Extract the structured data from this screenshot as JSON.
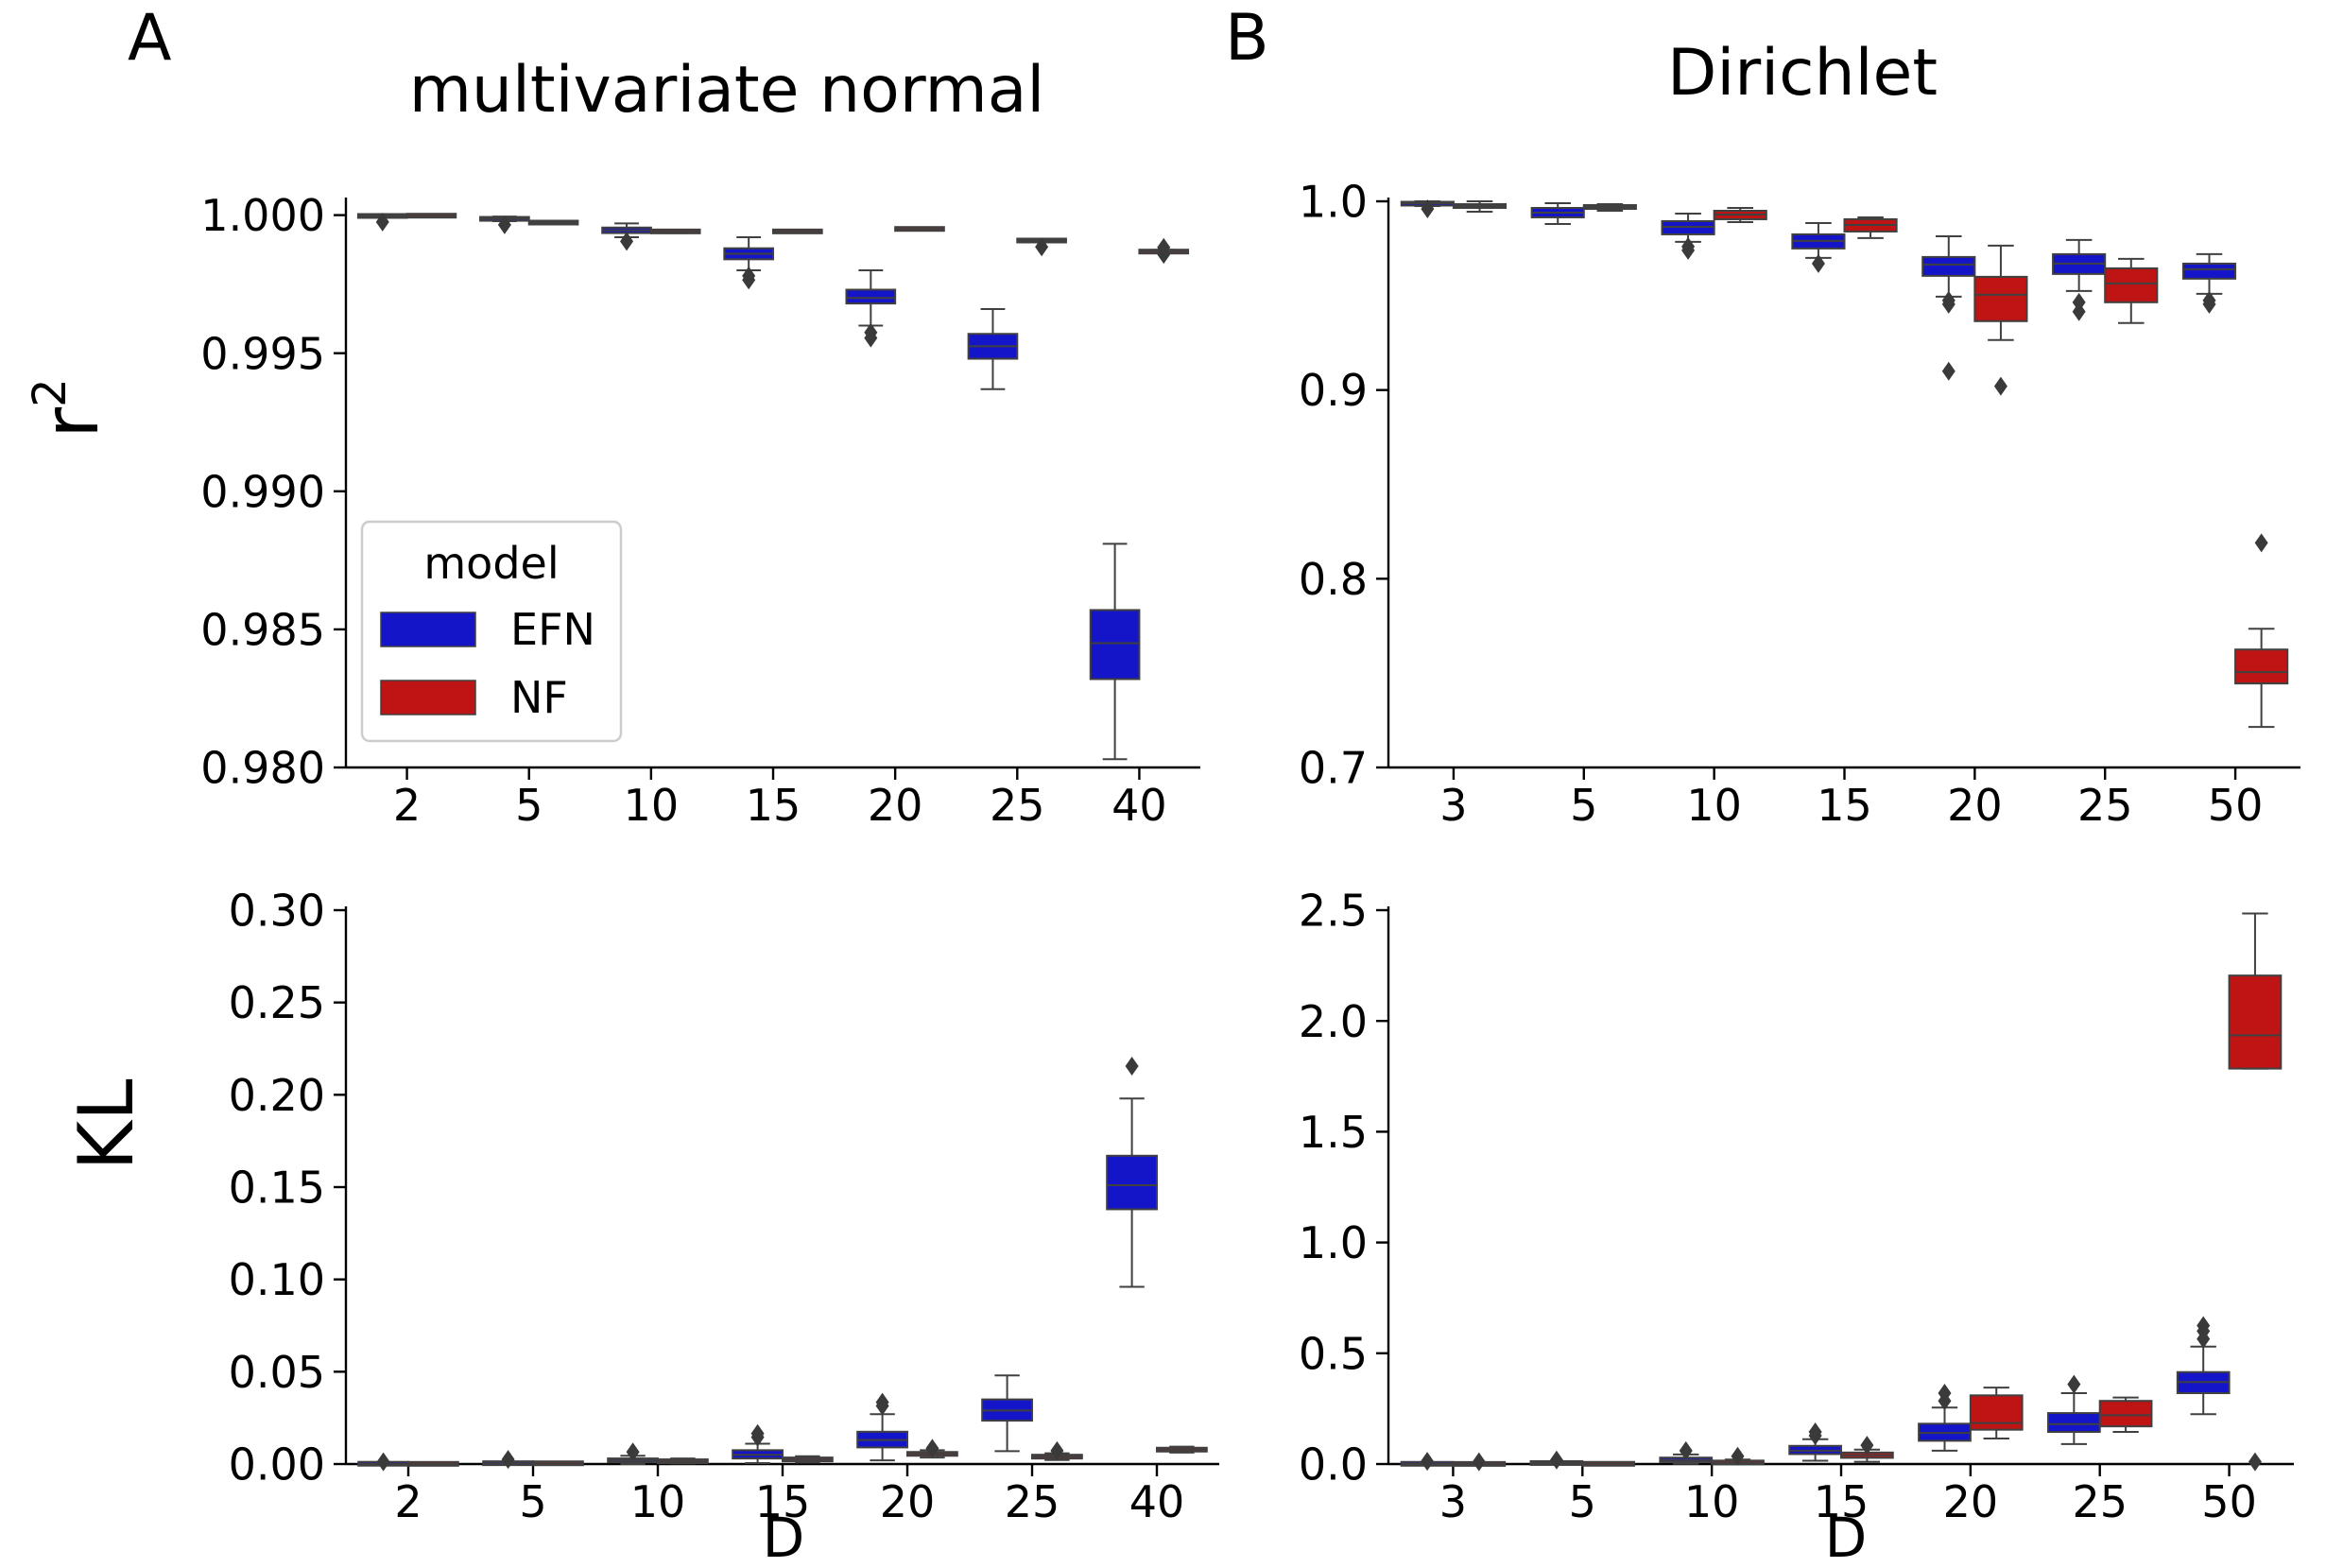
{
  "figure": {
    "panel_labels": [
      "A",
      "B"
    ],
    "column_titles": [
      "multivariate normal",
      "Dirichlet"
    ],
    "row_labels": [
      "r",
      "KL"
    ],
    "row_label_superscript": "2",
    "xlabel": "D"
  },
  "legend": {
    "title": "model",
    "entries": [
      {
        "label": "EFN",
        "color": "#1414c8"
      },
      {
        "label": "NF",
        "color": "#bf1414"
      }
    ]
  },
  "colors": {
    "EFN": "#1414c8",
    "NF": "#bf1414",
    "whisker": "#404040"
  },
  "chart_data": [
    {
      "id": "A-r2",
      "type": "box",
      "panel": "A",
      "title": "multivariate normal",
      "ylabel": "r2",
      "xlabel": "",
      "categories": [
        "2",
        "5",
        "10",
        "15",
        "20",
        "25",
        "40"
      ],
      "ylim": [
        0.98,
        1.0005
      ],
      "yticks": [
        0.98,
        0.985,
        0.99,
        0.995,
        1.0
      ],
      "ytick_labels": [
        "0.980",
        "0.985",
        "0.990",
        "0.995",
        "1.000"
      ],
      "grid": false,
      "legend": "lower-left",
      "series": [
        {
          "name": "EFN",
          "boxes": [
            {
              "q1": 0.99995,
              "median": 0.99997,
              "q3": 0.99999,
              "whislo": 0.99992,
              "whishi": 1.0,
              "fliers": [
                0.99975
              ]
            },
            {
              "q1": 0.99983,
              "median": 0.99987,
              "q3": 0.9999,
              "whislo": 0.99978,
              "whishi": 0.99995,
              "fliers": [
                0.99965
              ]
            },
            {
              "q1": 0.99935,
              "median": 0.99945,
              "q3": 0.99955,
              "whislo": 0.9992,
              "whishi": 0.9997,
              "fliers": [
                0.99905
              ]
            },
            {
              "q1": 0.9984,
              "median": 0.9986,
              "q3": 0.9988,
              "whislo": 0.998,
              "whishi": 0.9992,
              "fliers": [
                0.9978,
                0.99765
              ]
            },
            {
              "q1": 0.9968,
              "median": 0.997,
              "q3": 0.9973,
              "whislo": 0.996,
              "whishi": 0.998,
              "fliers": [
                0.99575,
                0.99555
              ]
            },
            {
              "q1": 0.9948,
              "median": 0.99525,
              "q3": 0.9957,
              "whislo": 0.9937,
              "whishi": 0.9966,
              "fliers": []
            },
            {
              "q1": 0.9832,
              "median": 0.9845,
              "q3": 0.9857,
              "whislo": 0.9803,
              "whishi": 0.9881,
              "fliers": []
            }
          ]
        },
        {
          "name": "NF",
          "boxes": [
            {
              "q1": 0.99997,
              "median": 0.99998,
              "q3": 0.99999,
              "whislo": 0.99995,
              "whishi": 1.0,
              "fliers": []
            },
            {
              "q1": 0.9997,
              "median": 0.99973,
              "q3": 0.99976,
              "whislo": 0.99968,
              "whishi": 0.99979,
              "fliers": []
            },
            {
              "q1": 0.99938,
              "median": 0.99941,
              "q3": 0.99944,
              "whislo": 0.99935,
              "whishi": 0.99947,
              "fliers": []
            },
            {
              "q1": 0.99938,
              "median": 0.99941,
              "q3": 0.99944,
              "whislo": 0.99936,
              "whishi": 0.99946,
              "fliers": []
            },
            {
              "q1": 0.99948,
              "median": 0.9995,
              "q3": 0.99952,
              "whislo": 0.99946,
              "whishi": 0.99954,
              "fliers": []
            },
            {
              "q1": 0.99905,
              "median": 0.99908,
              "q3": 0.99911,
              "whislo": 0.99902,
              "whishi": 0.99914,
              "fliers": [
                0.99885
              ]
            },
            {
              "q1": 0.99865,
              "median": 0.99868,
              "q3": 0.99871,
              "whislo": 0.99863,
              "whishi": 0.99874,
              "fliers": [
                0.99883,
                0.99858
              ]
            }
          ]
        }
      ]
    },
    {
      "id": "B-r2",
      "type": "box",
      "panel": "B",
      "title": "Dirichlet",
      "ylabel": "",
      "xlabel": "",
      "categories": [
        "3",
        "5",
        "10",
        "15",
        "20",
        "25",
        "50"
      ],
      "ylim": [
        0.7,
        1.0
      ],
      "yticks": [
        0.7,
        0.8,
        0.9,
        1.0
      ],
      "ytick_labels": [
        "0.7",
        "0.8",
        "0.9",
        "1.0"
      ],
      "grid": false,
      "legend": "none",
      "series": [
        {
          "name": "EFN",
          "boxes": [
            {
              "q1": 0.998,
              "median": 0.999,
              "q3": 0.9995,
              "whislo": 0.9975,
              "whishi": 1.0,
              "fliers": [
                0.996
              ]
            },
            {
              "q1": 0.9915,
              "median": 0.994,
              "q3": 0.9965,
              "whislo": 0.988,
              "whishi": 0.999,
              "fliers": []
            },
            {
              "q1": 0.9825,
              "median": 0.9865,
              "q3": 0.9895,
              "whislo": 0.9785,
              "whishi": 0.9935,
              "fliers": [
                0.976,
                0.974
              ]
            },
            {
              "q1": 0.975,
              "median": 0.979,
              "q3": 0.9825,
              "whislo": 0.97,
              "whishi": 0.9885,
              "fliers": [
                0.967
              ]
            },
            {
              "q1": 0.9605,
              "median": 0.9665,
              "q3": 0.9705,
              "whislo": 0.9495,
              "whishi": 0.9815,
              "fliers": [
                0.9475,
                0.9455,
                0.91
              ]
            },
            {
              "q1": 0.9615,
              "median": 0.967,
              "q3": 0.972,
              "whislo": 0.9525,
              "whishi": 0.9795,
              "fliers": [
                0.9465,
                0.9415
              ]
            },
            {
              "q1": 0.959,
              "median": 0.964,
              "q3": 0.967,
              "whislo": 0.951,
              "whishi": 0.972,
              "fliers": [
                0.9475,
                0.9455
              ]
            }
          ]
        },
        {
          "name": "NF",
          "boxes": [
            {
              "q1": 0.9965,
              "median": 0.9975,
              "q3": 0.9985,
              "whislo": 0.9945,
              "whishi": 1.0,
              "fliers": []
            },
            {
              "q1": 0.996,
              "median": 0.997,
              "q3": 0.998,
              "whislo": 0.995,
              "whishi": 0.9985,
              "fliers": []
            },
            {
              "q1": 0.9905,
              "median": 0.993,
              "q3": 0.995,
              "whislo": 0.989,
              "whishi": 0.9965,
              "fliers": []
            },
            {
              "q1": 0.984,
              "median": 0.9875,
              "q3": 0.9905,
              "whislo": 0.9805,
              "whishi": 0.9915,
              "fliers": []
            },
            {
              "q1": 0.9365,
              "median": 0.9505,
              "q3": 0.96,
              "whislo": 0.9265,
              "whishi": 0.9765,
              "fliers": [
                0.902
              ]
            },
            {
              "q1": 0.9465,
              "median": 0.9565,
              "q3": 0.9645,
              "whislo": 0.9355,
              "whishi": 0.9695,
              "fliers": []
            },
            {
              "q1": 0.7445,
              "median": 0.7505,
              "q3": 0.7625,
              "whislo": 0.7215,
              "whishi": 0.7735,
              "fliers": [
                0.819
              ]
            }
          ]
        }
      ]
    },
    {
      "id": "A-KL",
      "type": "box",
      "panel": "A",
      "title": "",
      "ylabel": "KL",
      "xlabel": "D",
      "categories": [
        "2",
        "5",
        "10",
        "15",
        "20",
        "25",
        "40"
      ],
      "ylim": [
        0.0,
        0.3
      ],
      "yticks": [
        0.0,
        0.05,
        0.1,
        0.15,
        0.2,
        0.25,
        0.3
      ],
      "ytick_labels": [
        "0.00",
        "0.05",
        "0.10",
        "0.15",
        "0.20",
        "0.25",
        "0.30"
      ],
      "grid": false,
      "legend": "none",
      "series": [
        {
          "name": "EFN",
          "boxes": [
            {
              "q1": 0.0,
              "median": 0.0,
              "q3": 0.0003,
              "whislo": 0.0,
              "whishi": 0.0005,
              "fliers": [
                0.0012
              ]
            },
            {
              "q1": 0.0002,
              "median": 0.0004,
              "q3": 0.0007,
              "whislo": 0.0,
              "whishi": 0.0012,
              "fliers": [
                0.0025
              ]
            },
            {
              "q1": 0.001,
              "median": 0.002,
              "q3": 0.003,
              "whislo": 0.0,
              "whishi": 0.0045,
              "fliers": [
                0.0065
              ]
            },
            {
              "q1": 0.003,
              "median": 0.005,
              "q3": 0.0075,
              "whislo": 0.0005,
              "whishi": 0.011,
              "fliers": [
                0.0145,
                0.0165
              ]
            },
            {
              "q1": 0.009,
              "median": 0.013,
              "q3": 0.0175,
              "whislo": 0.002,
              "whishi": 0.027,
              "fliers": [
                0.0315,
                0.0335
              ]
            },
            {
              "q1": 0.0235,
              "median": 0.029,
              "q3": 0.035,
              "whislo": 0.007,
              "whishi": 0.048,
              "fliers": []
            },
            {
              "q1": 0.138,
              "median": 0.151,
              "q3": 0.167,
              "whislo": 0.096,
              "whishi": 0.198,
              "fliers": [
                0.2155
              ]
            }
          ]
        },
        {
          "name": "NF",
          "boxes": [
            {
              "q1": 0.0,
              "median": 0.0,
              "q3": 0.0002,
              "whislo": 0.0,
              "whishi": 0.0004,
              "fliers": []
            },
            {
              "q1": 0.0002,
              "median": 0.0004,
              "q3": 0.0006,
              "whislo": 0.0,
              "whishi": 0.0009,
              "fliers": []
            },
            {
              "q1": 0.0008,
              "median": 0.0015,
              "q3": 0.0022,
              "whislo": 0.0003,
              "whishi": 0.003,
              "fliers": []
            },
            {
              "q1": 0.0018,
              "median": 0.0025,
              "q3": 0.0032,
              "whislo": 0.0008,
              "whishi": 0.0042,
              "fliers": []
            },
            {
              "q1": 0.0045,
              "median": 0.0055,
              "q3": 0.0065,
              "whislo": 0.0035,
              "whishi": 0.0075,
              "fliers": [
                0.0085
              ]
            },
            {
              "q1": 0.003,
              "median": 0.004,
              "q3": 0.005,
              "whislo": 0.0022,
              "whishi": 0.0058,
              "fliers": [
                0.0072
              ]
            },
            {
              "q1": 0.0068,
              "median": 0.0078,
              "q3": 0.0088,
              "whislo": 0.0062,
              "whishi": 0.0094,
              "fliers": []
            }
          ]
        }
      ]
    },
    {
      "id": "B-KL",
      "type": "box",
      "panel": "B",
      "title": "",
      "ylabel": "",
      "xlabel": "D",
      "categories": [
        "3",
        "5",
        "10",
        "15",
        "20",
        "25",
        "50"
      ],
      "ylim": [
        0.0,
        2.5
      ],
      "yticks": [
        0.0,
        0.5,
        1.0,
        1.5,
        2.0,
        2.5
      ],
      "ytick_labels": [
        "0.0",
        "0.5",
        "1.0",
        "1.5",
        "2.0",
        "2.5"
      ],
      "grid": false,
      "legend": "none",
      "series": [
        {
          "name": "EFN",
          "boxes": [
            {
              "q1": 0.0,
              "median": 0.0,
              "q3": 0.002,
              "whislo": 0.0,
              "whishi": 0.004,
              "fliers": [
                0.012
              ]
            },
            {
              "q1": 0.002,
              "median": 0.004,
              "q3": 0.007,
              "whislo": 0.0,
              "whishi": 0.011,
              "fliers": [
                0.018
              ]
            },
            {
              "q1": 0.009,
              "median": 0.018,
              "q3": 0.029,
              "whislo": 0.001,
              "whishi": 0.043,
              "fliers": [
                0.06
              ]
            },
            {
              "q1": 0.045,
              "median": 0.06,
              "q3": 0.082,
              "whislo": 0.015,
              "whishi": 0.112,
              "fliers": [
                0.128,
                0.145
              ]
            },
            {
              "q1": 0.105,
              "median": 0.14,
              "q3": 0.182,
              "whislo": 0.06,
              "whishi": 0.255,
              "fliers": [
                0.285,
                0.32
              ]
            },
            {
              "q1": 0.145,
              "median": 0.18,
              "q3": 0.23,
              "whislo": 0.09,
              "whishi": 0.32,
              "fliers": [
                0.36
              ]
            },
            {
              "q1": 0.32,
              "median": 0.37,
              "q3": 0.415,
              "whislo": 0.225,
              "whishi": 0.53,
              "fliers": [
                0.565,
                0.6,
                0.625
              ]
            }
          ]
        },
        {
          "name": "NF",
          "boxes": [
            {
              "q1": 0.0,
              "median": 0.0,
              "q3": 0.001,
              "whislo": 0.0,
              "whishi": 0.002,
              "fliers": [
                0.01
              ]
            },
            {
              "q1": 0.0,
              "median": 0.001,
              "q3": 0.002,
              "whislo": 0.0,
              "whishi": 0.003,
              "fliers": []
            },
            {
              "q1": 0.002,
              "median": 0.006,
              "q3": 0.012,
              "whislo": 0.0,
              "whishi": 0.02,
              "fliers": [
                0.035
              ]
            },
            {
              "q1": 0.028,
              "median": 0.04,
              "q3": 0.052,
              "whislo": 0.01,
              "whishi": 0.065,
              "fliers": [
                0.085
              ]
            },
            {
              "q1": 0.155,
              "median": 0.185,
              "q3": 0.31,
              "whislo": 0.115,
              "whishi": 0.345,
              "fliers": []
            },
            {
              "q1": 0.17,
              "median": 0.22,
              "q3": 0.285,
              "whislo": 0.145,
              "whishi": 0.3,
              "fliers": []
            },
            {
              "q1": 1.785,
              "median": 1.935,
              "q3": 2.205,
              "whislo": 1.785,
              "whishi": 2.485,
              "fliers": [
                0.01
              ]
            }
          ]
        }
      ]
    }
  ]
}
